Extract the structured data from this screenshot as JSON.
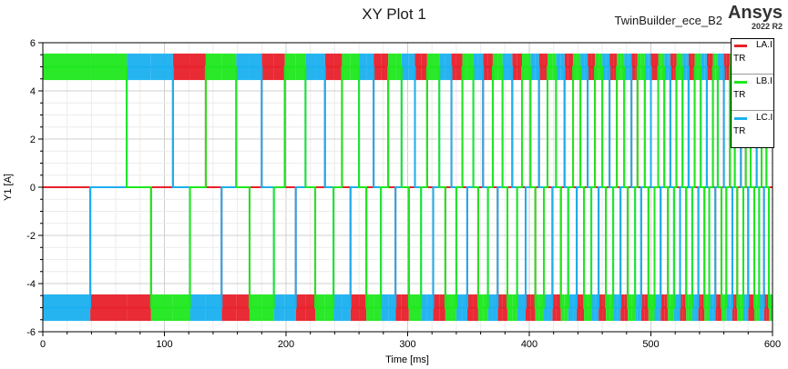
{
  "header": {
    "title": "XY Plot 1",
    "design": "TwinBuilder_ece_B2",
    "brand": "Ansys",
    "version": "2022 R2"
  },
  "colors": {
    "LA": "#e8202a",
    "LB": "#1ee81e",
    "LC": "#1ab0f0"
  },
  "legend": [
    {
      "name": "LA.I",
      "unit": "TR",
      "color": "#e8202a"
    },
    {
      "name": "LB.I",
      "unit": "TR",
      "color": "#1ee81e"
    },
    {
      "name": "LC.I",
      "unit": "TR",
      "color": "#1ab0f0"
    }
  ],
  "chart_data": {
    "type": "line",
    "title": "XY Plot 1",
    "xlabel": "Time [ms]",
    "ylabel": "Y1 [A]",
    "xlim": [
      0,
      600
    ],
    "ylim": [
      -6,
      6
    ],
    "xticks": [
      0,
      100,
      200,
      300,
      400,
      500,
      600
    ],
    "yticks": [
      -6,
      -4,
      -2,
      0,
      2,
      4,
      6
    ],
    "grid": true,
    "legend_position": "top-right",
    "description_levels": {
      "high": 5.0,
      "low": -5.0,
      "off": 0
    },
    "series": [
      {
        "name": "LA.I",
        "sequence_offset": 1
      },
      {
        "name": "LB.I",
        "sequence_offset": 0
      },
      {
        "name": "LC.I",
        "sequence_offset": 2
      }
    ],
    "commutation_times_ms": [
      0,
      39,
      69,
      89,
      107,
      121,
      134,
      147,
      159,
      170,
      180,
      190,
      199,
      208,
      216,
      224,
      232,
      239,
      246,
      253,
      260,
      266,
      272,
      278,
      284,
      290,
      295,
      301,
      306,
      311,
      316,
      321,
      326,
      331,
      336,
      340,
      345,
      349,
      354,
      358,
      362,
      366,
      370,
      374,
      378,
      382,
      386,
      390,
      394,
      397,
      401,
      405,
      408,
      412,
      415,
      419,
      422,
      426,
      429,
      432,
      436,
      439,
      442,
      445,
      448,
      451,
      454,
      457,
      460,
      463,
      466,
      469,
      472,
      475,
      478,
      481,
      484,
      487,
      489,
      492,
      495,
      498,
      500,
      503,
      506,
      508,
      511,
      514,
      516,
      519,
      521,
      524,
      526,
      529,
      531,
      534,
      536,
      539,
      541,
      544,
      546,
      548,
      551,
      553,
      555,
      558,
      560,
      562,
      565,
      567,
      569,
      571,
      574,
      576,
      578,
      580,
      582,
      585,
      587,
      589,
      591,
      593,
      595,
      597,
      600
    ]
  }
}
